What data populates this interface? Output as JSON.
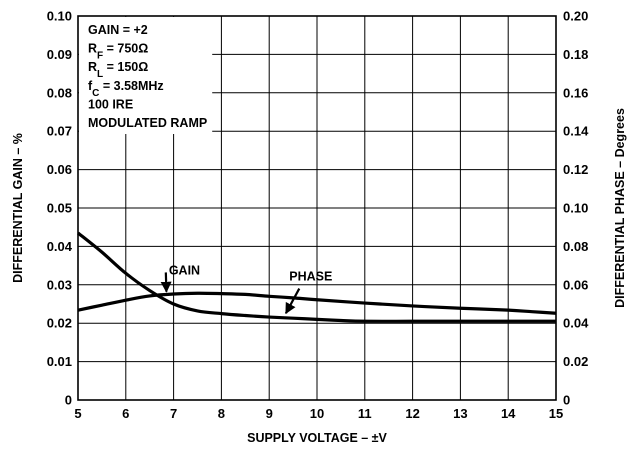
{
  "chart_data": {
    "type": "line",
    "title": "",
    "xlabel": "SUPPLY VOLTAGE – ±V",
    "ylabel_left": "DIFFERENTIAL GAIN – %",
    "ylabel_right": "DIFFERENTIAL PHASE  – Degrees",
    "xlim": [
      5,
      15
    ],
    "ylim_left": [
      0,
      0.1
    ],
    "ylim_right": [
      0,
      0.2
    ],
    "grid": true,
    "x_ticks": [
      5,
      6,
      7,
      8,
      9,
      10,
      11,
      12,
      13,
      14,
      15
    ],
    "x_tick_labels": [
      "5",
      "6",
      "7",
      "8",
      "9",
      "10",
      "11",
      "12",
      "13",
      "14",
      "15"
    ],
    "y_left_ticks": [
      0,
      0.01,
      0.02,
      0.03,
      0.04,
      0.05,
      0.06,
      0.07,
      0.08,
      0.09,
      0.1
    ],
    "y_left_tick_labels": [
      "0",
      "0.01",
      "0.02",
      "0.03",
      "0.04",
      "0.05",
      "0.06",
      "0.07",
      "0.08",
      "0.09",
      "0.10"
    ],
    "y_right_ticks": [
      0,
      0.02,
      0.04,
      0.06,
      0.08,
      0.1,
      0.12,
      0.14,
      0.16,
      0.18,
      0.2
    ],
    "y_right_tick_labels": [
      "0",
      "0.02",
      "0.04",
      "0.06",
      "0.08",
      "0.10",
      "0.12",
      "0.14",
      "0.16",
      "0.18",
      "0.20"
    ],
    "conditions": [
      {
        "main": "GAIN = +2",
        "sub": "",
        "tail": ""
      },
      {
        "main": "R",
        "sub": "F",
        "tail": " = 750Ω"
      },
      {
        "main": "R",
        "sub": "L",
        "tail": " = 150Ω"
      },
      {
        "main": "f",
        "sub": "C",
        "tail": " = 3.58MHz"
      },
      {
        "main": "100 IRE",
        "sub": "",
        "tail": ""
      },
      {
        "main": "MODULATED RAMP",
        "sub": "",
        "tail": ""
      }
    ],
    "series": [
      {
        "name": "GAIN",
        "axis": "left",
        "x": [
          5,
          5.5,
          6,
          6.5,
          7,
          7.5,
          8,
          8.5,
          9,
          9.5,
          10,
          10.5,
          11,
          12,
          13,
          14,
          15
        ],
        "y": [
          0.0435,
          0.0385,
          0.033,
          0.0285,
          0.025,
          0.0232,
          0.0225,
          0.022,
          0.0216,
          0.0213,
          0.021,
          0.0207,
          0.0205,
          0.0205,
          0.0205,
          0.0205,
          0.0205
        ],
        "label_at": [
          6.85,
          0.0282
        ]
      },
      {
        "name": "PHASE",
        "axis": "right",
        "x": [
          5,
          5.5,
          6,
          6.5,
          7,
          7.5,
          8,
          8.5,
          9,
          9.5,
          10,
          11,
          12,
          13,
          14,
          14.5,
          15
        ],
        "y": [
          0.0468,
          0.0494,
          0.052,
          0.0542,
          0.0552,
          0.0556,
          0.0554,
          0.055,
          0.054,
          0.0532,
          0.0522,
          0.0505,
          0.049,
          0.0478,
          0.0468,
          0.046,
          0.0452
        ],
        "label_at": [
          9.35,
          0.0452
        ]
      }
    ],
    "series_labels": [
      {
        "name": "GAIN",
        "x": 6.9,
        "y_left": 0.0327
      },
      {
        "name": "PHASE",
        "x": 9.42,
        "y_left": 0.0311
      }
    ]
  }
}
